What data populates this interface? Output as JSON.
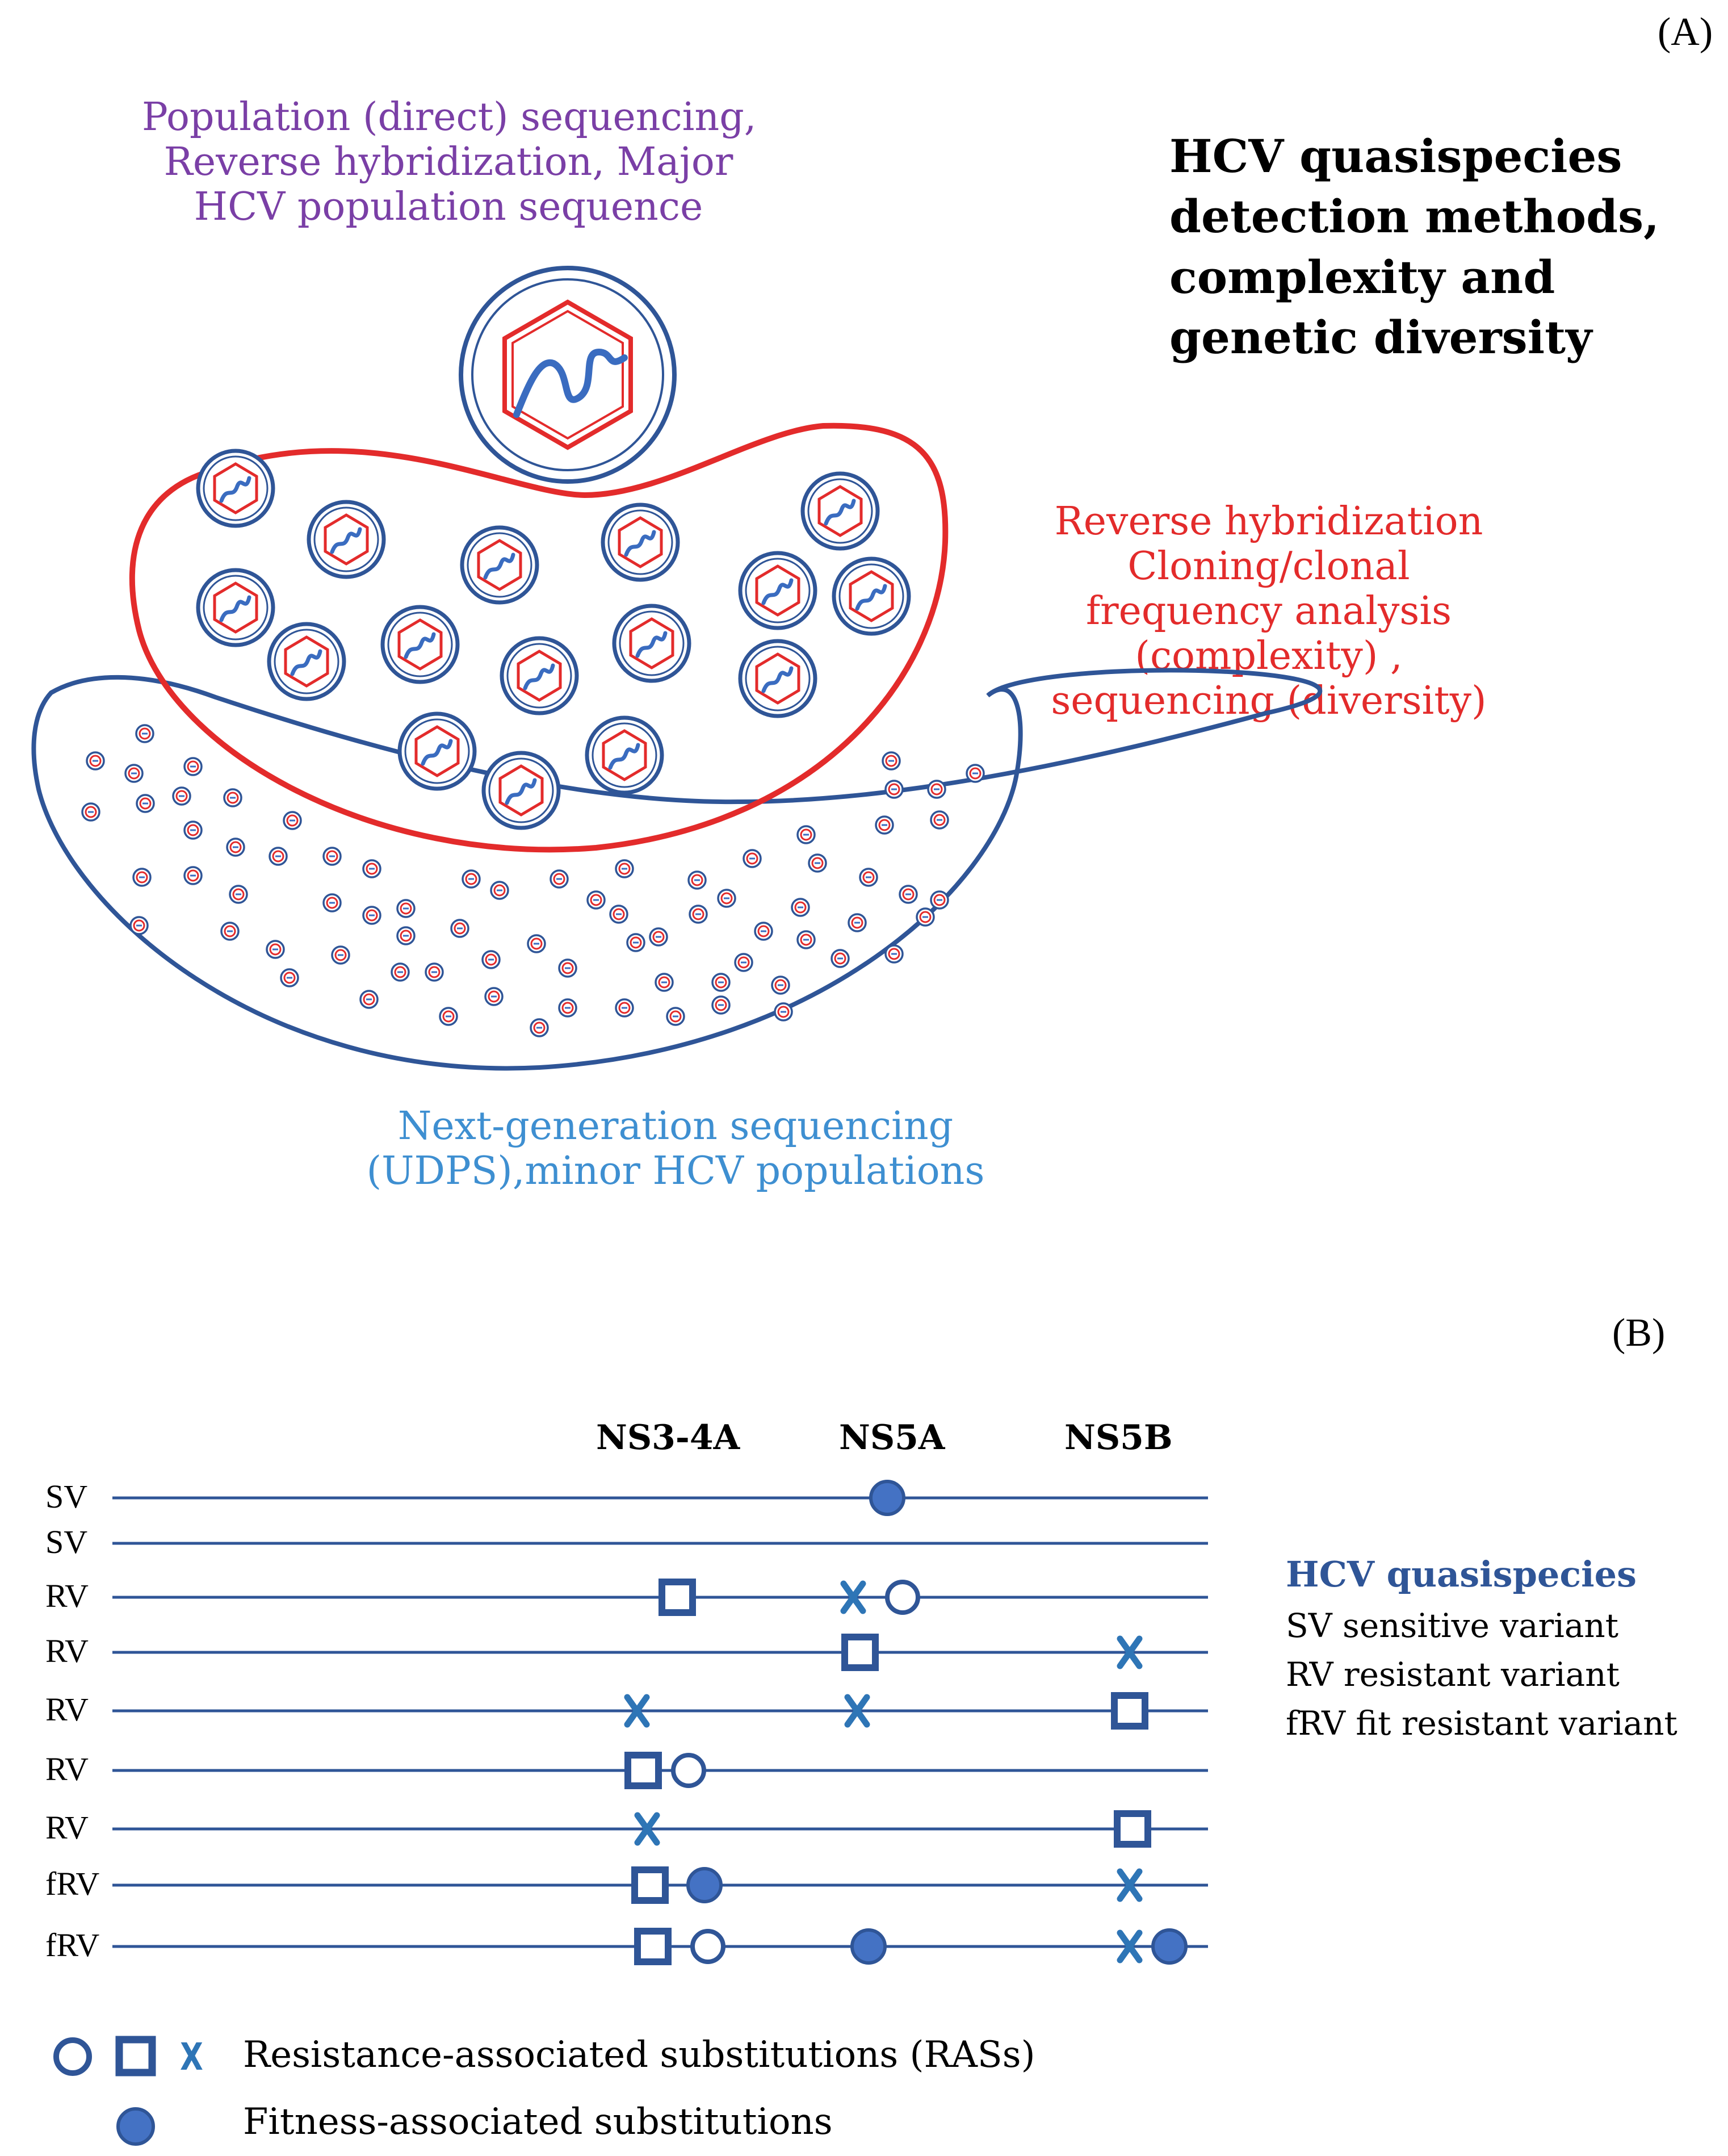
{
  "panel_a": {
    "label": "(A)",
    "title_lines": [
      "HCV quasispecies",
      "detection methods,",
      "complexity and",
      "genetic diversity"
    ],
    "top_caption_lines": [
      "Population (direct) sequencing,",
      "Reverse hybridization, Major",
      "HCV population sequence"
    ],
    "right_caption_lines": [
      "Reverse hybridization",
      "Cloning/clonal",
      "frequency analysis",
      "(complexity) ,",
      "sequencing (diversity)"
    ],
    "bottom_caption_lines": [
      "Next-generation sequencing",
      "(UDPS),minor HCV populations"
    ],
    "colors": {
      "purple": "#7a3fa6",
      "red": "#e32b2b",
      "navy": "#2f5597",
      "lightblue": "#3e8fd1"
    }
  },
  "panel_b": {
    "label": "(B)",
    "genes": [
      "NS3-4A",
      "NS5A",
      "NS5B"
    ],
    "rows": [
      {
        "label": "SV",
        "marks": [
          {
            "type": "filled-circle",
            "pos": 1
          }
        ]
      },
      {
        "label": "SV",
        "marks": []
      },
      {
        "label": "RV",
        "marks": [
          {
            "type": "square",
            "pos": 0
          },
          {
            "type": "x",
            "pos": 1
          },
          {
            "type": "open-circle",
            "pos": 1
          }
        ]
      },
      {
        "label": "RV",
        "marks": [
          {
            "type": "square",
            "pos": 1
          },
          {
            "type": "x",
            "pos": 2
          }
        ]
      },
      {
        "label": "RV",
        "marks": [
          {
            "type": "x",
            "pos": 0
          },
          {
            "type": "x",
            "pos": 1
          },
          {
            "type": "square",
            "pos": 2
          }
        ]
      },
      {
        "label": "RV",
        "marks": [
          {
            "type": "square",
            "pos": 0
          },
          {
            "type": "open-circle",
            "pos": 0
          }
        ]
      },
      {
        "label": "RV",
        "marks": [
          {
            "type": "x",
            "pos": 0
          },
          {
            "type": "square",
            "pos": 2
          }
        ]
      },
      {
        "label": "fRV",
        "marks": [
          {
            "type": "square",
            "pos": 0
          },
          {
            "type": "filled-circle",
            "pos": 0
          },
          {
            "type": "x",
            "pos": 2
          }
        ]
      },
      {
        "label": "fRV",
        "marks": [
          {
            "type": "square",
            "pos": 0
          },
          {
            "type": "open-circle",
            "pos": 0
          },
          {
            "type": "filled-circle",
            "pos": 1
          },
          {
            "type": "x",
            "pos": 2
          },
          {
            "type": "filled-circle",
            "pos": 2
          }
        ]
      }
    ],
    "legend": {
      "title": "HCV quasispecies",
      "items": [
        "SV sensitive variant",
        "RV resistant variant",
        "fRV fit resistant variant"
      ]
    },
    "key": {
      "ras": "Resistance-associated substitutions (RASs)",
      "fitness": "Fitness-associated substitutions",
      "x_glyph": "X"
    },
    "colors": {
      "line": "#2f5597",
      "mark": "#2f5597",
      "x": "#2e75b6"
    }
  }
}
